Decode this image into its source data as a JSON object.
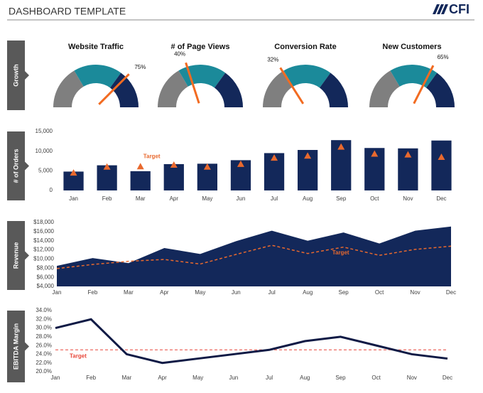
{
  "header": {
    "title": "DASHBOARD TEMPLATE",
    "logo": "CFI"
  },
  "sections": [
    "Growth",
    "# of Orders",
    "Revenue",
    "EBITDA Margin"
  ],
  "chart_data": [
    {
      "type": "gauge",
      "title": "Website Traffic",
      "value": 75,
      "value_label": "75%",
      "bands": [
        33,
        37,
        30
      ],
      "band_colors": [
        "#7f7f7f",
        "#1b8a9a",
        "#13285a"
      ],
      "needle_color": "#f26b21"
    },
    {
      "type": "gauge",
      "title": "# of Page Views",
      "value": 40,
      "value_label": "40%",
      "bands": [
        33,
        37,
        30
      ],
      "band_colors": [
        "#7f7f7f",
        "#1b8a9a",
        "#13285a"
      ],
      "needle_color": "#f26b21"
    },
    {
      "type": "gauge",
      "title": "Conversion Rate",
      "value": 32,
      "value_label": "32%",
      "bands": [
        33,
        37,
        30
      ],
      "band_colors": [
        "#7f7f7f",
        "#1b8a9a",
        "#13285a"
      ],
      "needle_color": "#f26b21"
    },
    {
      "type": "gauge",
      "title": "New Customers",
      "value": 65,
      "value_label": "65%",
      "bands": [
        33,
        37,
        30
      ],
      "band_colors": [
        "#7f7f7f",
        "#1b8a9a",
        "#13285a"
      ],
      "needle_color": "#f26b21"
    },
    {
      "type": "bar",
      "categories": [
        "Jan",
        "Feb",
        "Mar",
        "Apr",
        "May",
        "Jun",
        "Jul",
        "Aug",
        "Sep",
        "Oct",
        "Nov",
        "Dec"
      ],
      "values": [
        4800,
        6400,
        4900,
        6700,
        6800,
        7700,
        9500,
        10300,
        12800,
        10800,
        10700,
        12700
      ],
      "color": "#13285a",
      "target": [
        4500,
        6000,
        6100,
        6500,
        6000,
        6700,
        8300,
        8800,
        11100,
        9300,
        9100,
        8500
      ],
      "target_color": "#e8692e",
      "annotation": "Target",
      "ylim": [
        0,
        15000
      ],
      "yticks": [
        0,
        {
          "value": 5000,
          "label": "5,000"
        },
        {
          "value": 10000,
          "label": "10,000"
        },
        {
          "value": 15000,
          "label": "15,000"
        }
      ]
    },
    {
      "type": "area",
      "categories": [
        "Jan",
        "Feb",
        "Mar",
        "Apr",
        "May",
        "Jun",
        "Jul",
        "Aug",
        "Sep",
        "Oct",
        "Nov",
        "Dec"
      ],
      "values": [
        8500,
        10200,
        9100,
        12400,
        11100,
        13900,
        16200,
        14000,
        15800,
        13400,
        16200,
        17100
      ],
      "color": "#13285a",
      "target": [
        7900,
        8800,
        9500,
        9900,
        8900,
        11000,
        13000,
        11200,
        12600,
        10800,
        12100,
        12800
      ],
      "target_color": "#e8692e",
      "annotation": "Target",
      "ylim": [
        4000,
        18000
      ],
      "yticks": [
        {
          "value": 4000,
          "label": "$4,000"
        },
        {
          "value": 6000,
          "label": "$6,000"
        },
        {
          "value": 8000,
          "label": "$8,000"
        },
        {
          "value": 10000,
          "label": "$10,000"
        },
        {
          "value": 12000,
          "label": "$12,000"
        },
        {
          "value": 14000,
          "label": "$14,000"
        },
        {
          "value": 16000,
          "label": "$16,000"
        },
        {
          "value": 18000,
          "label": "$18,000"
        }
      ]
    },
    {
      "type": "line",
      "categories": [
        "Jan",
        "Feb",
        "Mar",
        "Apr",
        "May",
        "Jun",
        "Jul",
        "Aug",
        "Sep",
        "Oct",
        "Nov",
        "Dec"
      ],
      "values": [
        30,
        32,
        24,
        22,
        23,
        24,
        25,
        27,
        28,
        26,
        24,
        23
      ],
      "color": "#0f1a45",
      "target": 25,
      "target_color": "#e8473a",
      "annotation": "Target",
      "ylim": [
        20,
        34
      ],
      "yticks": [
        {
          "value": 20,
          "label": "20.0%"
        },
        {
          "value": 22,
          "label": "22.0%"
        },
        {
          "value": 24,
          "label": "24.0%"
        },
        {
          "value": 26,
          "label": "26.0%"
        },
        {
          "value": 28,
          "label": "28.0%"
        },
        {
          "value": 30,
          "label": "30.0%"
        },
        {
          "value": 32,
          "label": "32.0%"
        },
        {
          "value": 34,
          "label": "34.0%"
        }
      ]
    }
  ]
}
